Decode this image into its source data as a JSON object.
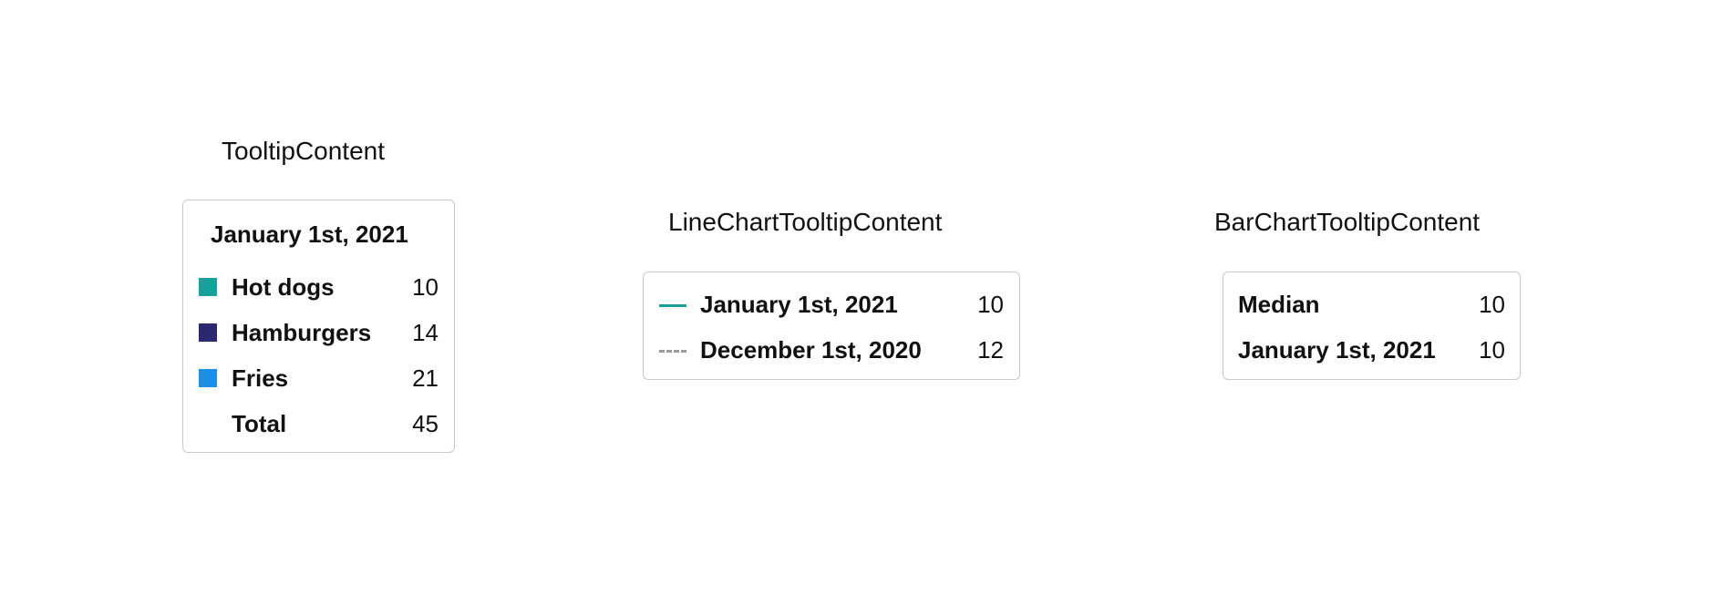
{
  "tooltip_content": {
    "title": "TooltipContent",
    "heading": "January 1st, 2021",
    "rows": [
      {
        "label": "Hot dogs",
        "value": "10",
        "color": "#16a19b"
      },
      {
        "label": "Hamburgers",
        "value": "14",
        "color": "#2b2770"
      },
      {
        "label": "Fries",
        "value": "21",
        "color": "#1b8fe6"
      }
    ],
    "total": {
      "label": "Total",
      "value": "45"
    }
  },
  "line_chart_tooltip_content": {
    "title": "LineChartTooltipContent",
    "rows": [
      {
        "label": "January 1st, 2021",
        "value": "10",
        "line_style": "solid",
        "color": "#1a9e9a"
      },
      {
        "label": "December 1st, 2020",
        "value": "12",
        "line_style": "dashed",
        "color": "#9a9a9a"
      }
    ]
  },
  "bar_chart_tooltip_content": {
    "title": "BarChartTooltipContent",
    "rows": [
      {
        "label": "Median",
        "value": "10"
      },
      {
        "label": "January 1st, 2021",
        "value": "10"
      }
    ]
  }
}
